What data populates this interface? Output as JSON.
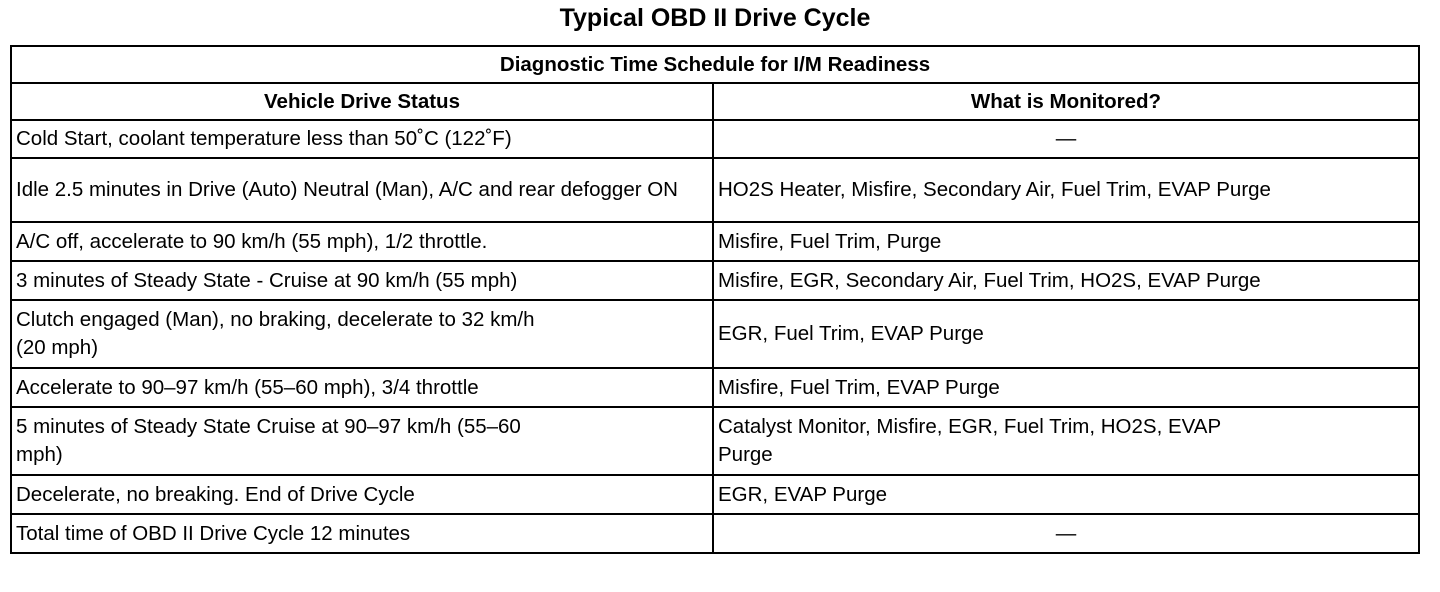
{
  "title": "Typical OBD II Drive Cycle",
  "table": {
    "caption": "Diagnostic Time Schedule for I/M Readiness",
    "headers": [
      "Vehicle Drive Status",
      "What is Monitored?"
    ],
    "rows": [
      {
        "status": "Cold Start, coolant temperature less than 50˚C (122˚F)",
        "monitored": "—"
      },
      {
        "status": "Idle 2.5 minutes in Drive (Auto) Neutral (Man), A/C and rear defogger ON",
        "monitored": "HO2S Heater, Misfire, Secondary Air, Fuel Trim, EVAP Purge"
      },
      {
        "status": "A/C off, accelerate to 90 km/h (55 mph), 1/2 throttle.",
        "monitored": "Misfire, Fuel Trim, Purge"
      },
      {
        "status": "3 minutes of Steady State - Cruise at 90 km/h (55 mph)",
        "monitored": "Misfire, EGR, Secondary Air, Fuel Trim, HO2S, EVAP Purge"
      },
      {
        "status": "Clutch engaged (Man), no braking, decelerate to 32 km/h (20 mph)",
        "monitored": "EGR, Fuel Trim, EVAP Purge"
      },
      {
        "status": "Accelerate to 90–97 km/h (55–60 mph), 3/4 throttle",
        "monitored": "Misfire, Fuel Trim, EVAP Purge"
      },
      {
        "status": "5 minutes of Steady State Cruise at 90–97 km/h (55–60 mph)",
        "monitored": "Catalyst Monitor, Misfire, EGR, Fuel Trim, HO2S, EVAP Purge"
      },
      {
        "status": "Decelerate, no breaking. End of Drive Cycle",
        "monitored": "EGR, EVAP Purge"
      },
      {
        "status": "Total time of OBD II Drive Cycle 12 minutes",
        "monitored": "—"
      }
    ]
  }
}
